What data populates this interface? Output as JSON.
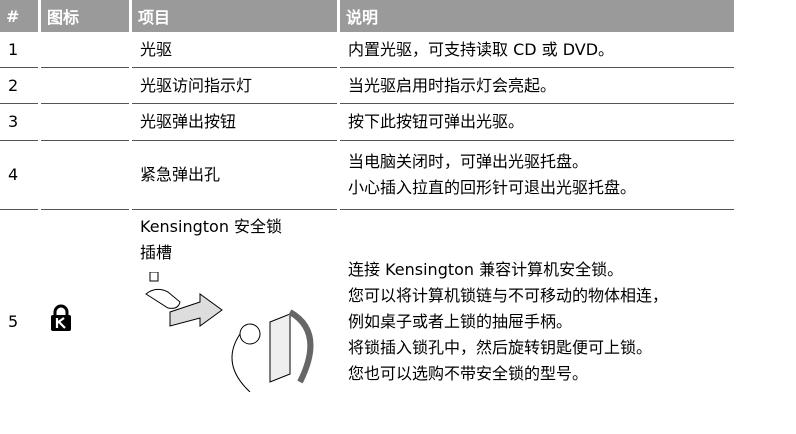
{
  "table": {
    "header": [
      "#",
      "图标",
      "项目",
      "说明"
    ],
    "rows": [
      {
        "number": "1",
        "item": [
          "光驱"
        ],
        "description": [
          "内置光驱，可支持读取 CD 或 DVD。"
        ]
      },
      {
        "number": "2",
        "item": [
          "光驱访问指示灯"
        ],
        "description": [
          "当光驱启用时指示灯会亮起。"
        ]
      },
      {
        "number": "3",
        "item": [
          "光驱弹出按钮"
        ],
        "description": [
          "按下此按钮可弹出光驱。"
        ]
      },
      {
        "number": "4",
        "item": [
          "紧急弹出孔"
        ],
        "description": [
          "当电脑关闭时，可弹出光驱托盘。",
          "小心插入拉直的回形针可退出光驱托盘。"
        ]
      },
      {
        "number": "5",
        "item": [
          "Kensington 安全锁",
          "插槽"
        ],
        "description": [
          "连接 Kensington 兼容计算机安全锁。",
          "您可以将计算机锁链与不可移动的物体相连，",
          "例如桌子或者上锁的抽屉手柄。",
          "将锁插入锁孔中，然后旋转钥匙便可上锁。",
          "您也可以选购不带安全锁的型号。"
        ]
      }
    ]
  }
}
